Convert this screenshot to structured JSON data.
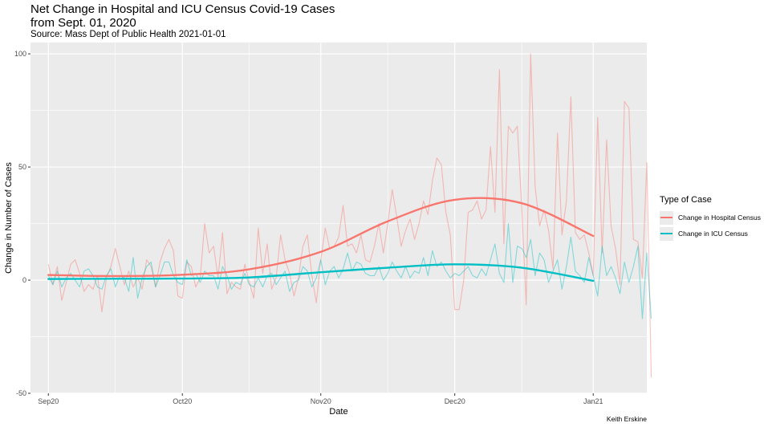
{
  "chart_data": {
    "type": "line",
    "title_lines": [
      "Net Change in Hospital and ICU Census Covid-19 Cases",
      "from Sept. 01, 2020"
    ],
    "subtitle": "Source: Mass Dept of Public Health 2021-01-01",
    "caption": "Keith Erskine",
    "xlabel": "Date",
    "ylabel": "Change in Number of Cases",
    "xlim": [
      "2020-08-28",
      "2021-01-13"
    ],
    "ylim": [
      -50,
      105
    ],
    "x_ticks": [
      {
        "date": "2020-09-01",
        "label": "Sep20"
      },
      {
        "date": "2020-10-01",
        "label": "Oct20"
      },
      {
        "date": "2020-11-01",
        "label": "Nov20"
      },
      {
        "date": "2020-12-01",
        "label": "Dec20"
      },
      {
        "date": "2021-01-01",
        "label": "Jan21"
      }
    ],
    "x_minor_ticks": [
      "2020-09-16",
      "2020-10-16",
      "2020-11-16",
      "2020-12-16"
    ],
    "y_ticks": [
      -50,
      0,
      50,
      100
    ],
    "y_minor_ticks": [
      -25,
      25,
      75
    ],
    "grid": true,
    "legend": {
      "title": "Type of Case",
      "position": "right",
      "items": [
        {
          "label": "Change in Hospital Census",
          "color": "#F8766D"
        },
        {
          "label": "Change in ICU Census",
          "color": "#00BFC4"
        }
      ]
    },
    "series": [
      {
        "name": "Change in Hospital Census",
        "color": "#F8766D",
        "start_date": "2020-09-01",
        "values": [
          7,
          -2,
          6,
          -9,
          -1,
          7,
          9,
          3,
          -5,
          -2,
          -4,
          2,
          -14,
          1,
          6,
          14,
          6,
          -2,
          4,
          -3,
          1,
          -4,
          9,
          6,
          -3,
          8,
          14,
          18,
          13,
          -7,
          -8,
          8,
          6,
          -3,
          1,
          25,
          12,
          15,
          1,
          21,
          -6,
          -1,
          -3,
          -4,
          7,
          -1,
          -8,
          23,
          3,
          16,
          -4,
          1,
          20,
          9,
          3,
          -7,
          1,
          15,
          20,
          2,
          -10,
          9,
          23,
          14,
          15,
          19,
          33,
          15,
          16,
          12,
          20,
          9,
          8,
          15,
          25,
          12,
          25,
          40,
          28,
          15,
          22,
          27,
          18,
          25,
          35,
          29,
          44,
          54,
          51,
          30,
          20,
          -13,
          -13,
          0,
          30,
          31,
          35,
          27,
          31,
          59,
          30,
          93,
          16,
          68,
          65,
          68,
          32,
          -11,
          100,
          41,
          24,
          31,
          22,
          5,
          65,
          20,
          35,
          81,
          21,
          18,
          20,
          12,
          2,
          72,
          12,
          62,
          24,
          14,
          -2,
          79,
          76,
          18,
          17,
          1,
          52,
          -43
        ]
      },
      {
        "name": "Change in ICU Census",
        "color": "#00BFC4",
        "start_date": "2020-09-01",
        "values": [
          2,
          -2,
          4,
          -3,
          1,
          3,
          0,
          -3,
          4,
          5,
          2,
          -3,
          -4,
          2,
          5,
          -3,
          2,
          1,
          -5,
          10,
          -8,
          1,
          6,
          8,
          -3,
          2,
          8,
          8,
          2,
          -1,
          -2,
          9,
          2,
          3,
          -1,
          4,
          2,
          2,
          -4,
          6,
          2,
          -4,
          -1,
          -2,
          3,
          -2,
          -3,
          1,
          -3,
          2,
          3,
          -2,
          1,
          4,
          -5,
          -1,
          0,
          6,
          4,
          -3,
          1,
          9,
          -2,
          4,
          6,
          1,
          5,
          12,
          4,
          8,
          7,
          3,
          2,
          2,
          6,
          0,
          3,
          8,
          4,
          1,
          6,
          1,
          4,
          3,
          10,
          2,
          13,
          6,
          8,
          4,
          1,
          3,
          2,
          4,
          6,
          2,
          1,
          5,
          2,
          9,
          16,
          3,
          -1,
          25,
          -1,
          15,
          14,
          10,
          18,
          2,
          12,
          9,
          -1,
          4,
          9,
          -4,
          6,
          19,
          4,
          2,
          -1,
          10,
          2,
          -7,
          15,
          2,
          6,
          1,
          -6,
          8,
          -1,
          6,
          15,
          -17,
          12,
          -17
        ]
      }
    ],
    "smooth": [
      {
        "name": "Change in Hospital Census",
        "color": "#F8766D",
        "points": [
          [
            "2020-09-01",
            2.3
          ],
          [
            "2020-09-16",
            1.8
          ],
          [
            "2020-10-01",
            2.4
          ],
          [
            "2020-10-16",
            4.8
          ],
          [
            "2020-11-01",
            12.5
          ],
          [
            "2020-11-16",
            26
          ],
          [
            "2020-12-01",
            35.5
          ],
          [
            "2020-12-16",
            34
          ],
          [
            "2021-01-01",
            19.5
          ]
        ]
      },
      {
        "name": "Change in ICU Census",
        "color": "#00BFC4",
        "points": [
          [
            "2020-09-01",
            0.5
          ],
          [
            "2020-09-16",
            0.6
          ],
          [
            "2020-10-01",
            0.7
          ],
          [
            "2020-10-16",
            1.2
          ],
          [
            "2020-11-01",
            3.5
          ],
          [
            "2020-11-16",
            5.5
          ],
          [
            "2020-12-01",
            7
          ],
          [
            "2020-12-16",
            5.5
          ],
          [
            "2021-01-01",
            -0.3
          ]
        ]
      }
    ]
  }
}
